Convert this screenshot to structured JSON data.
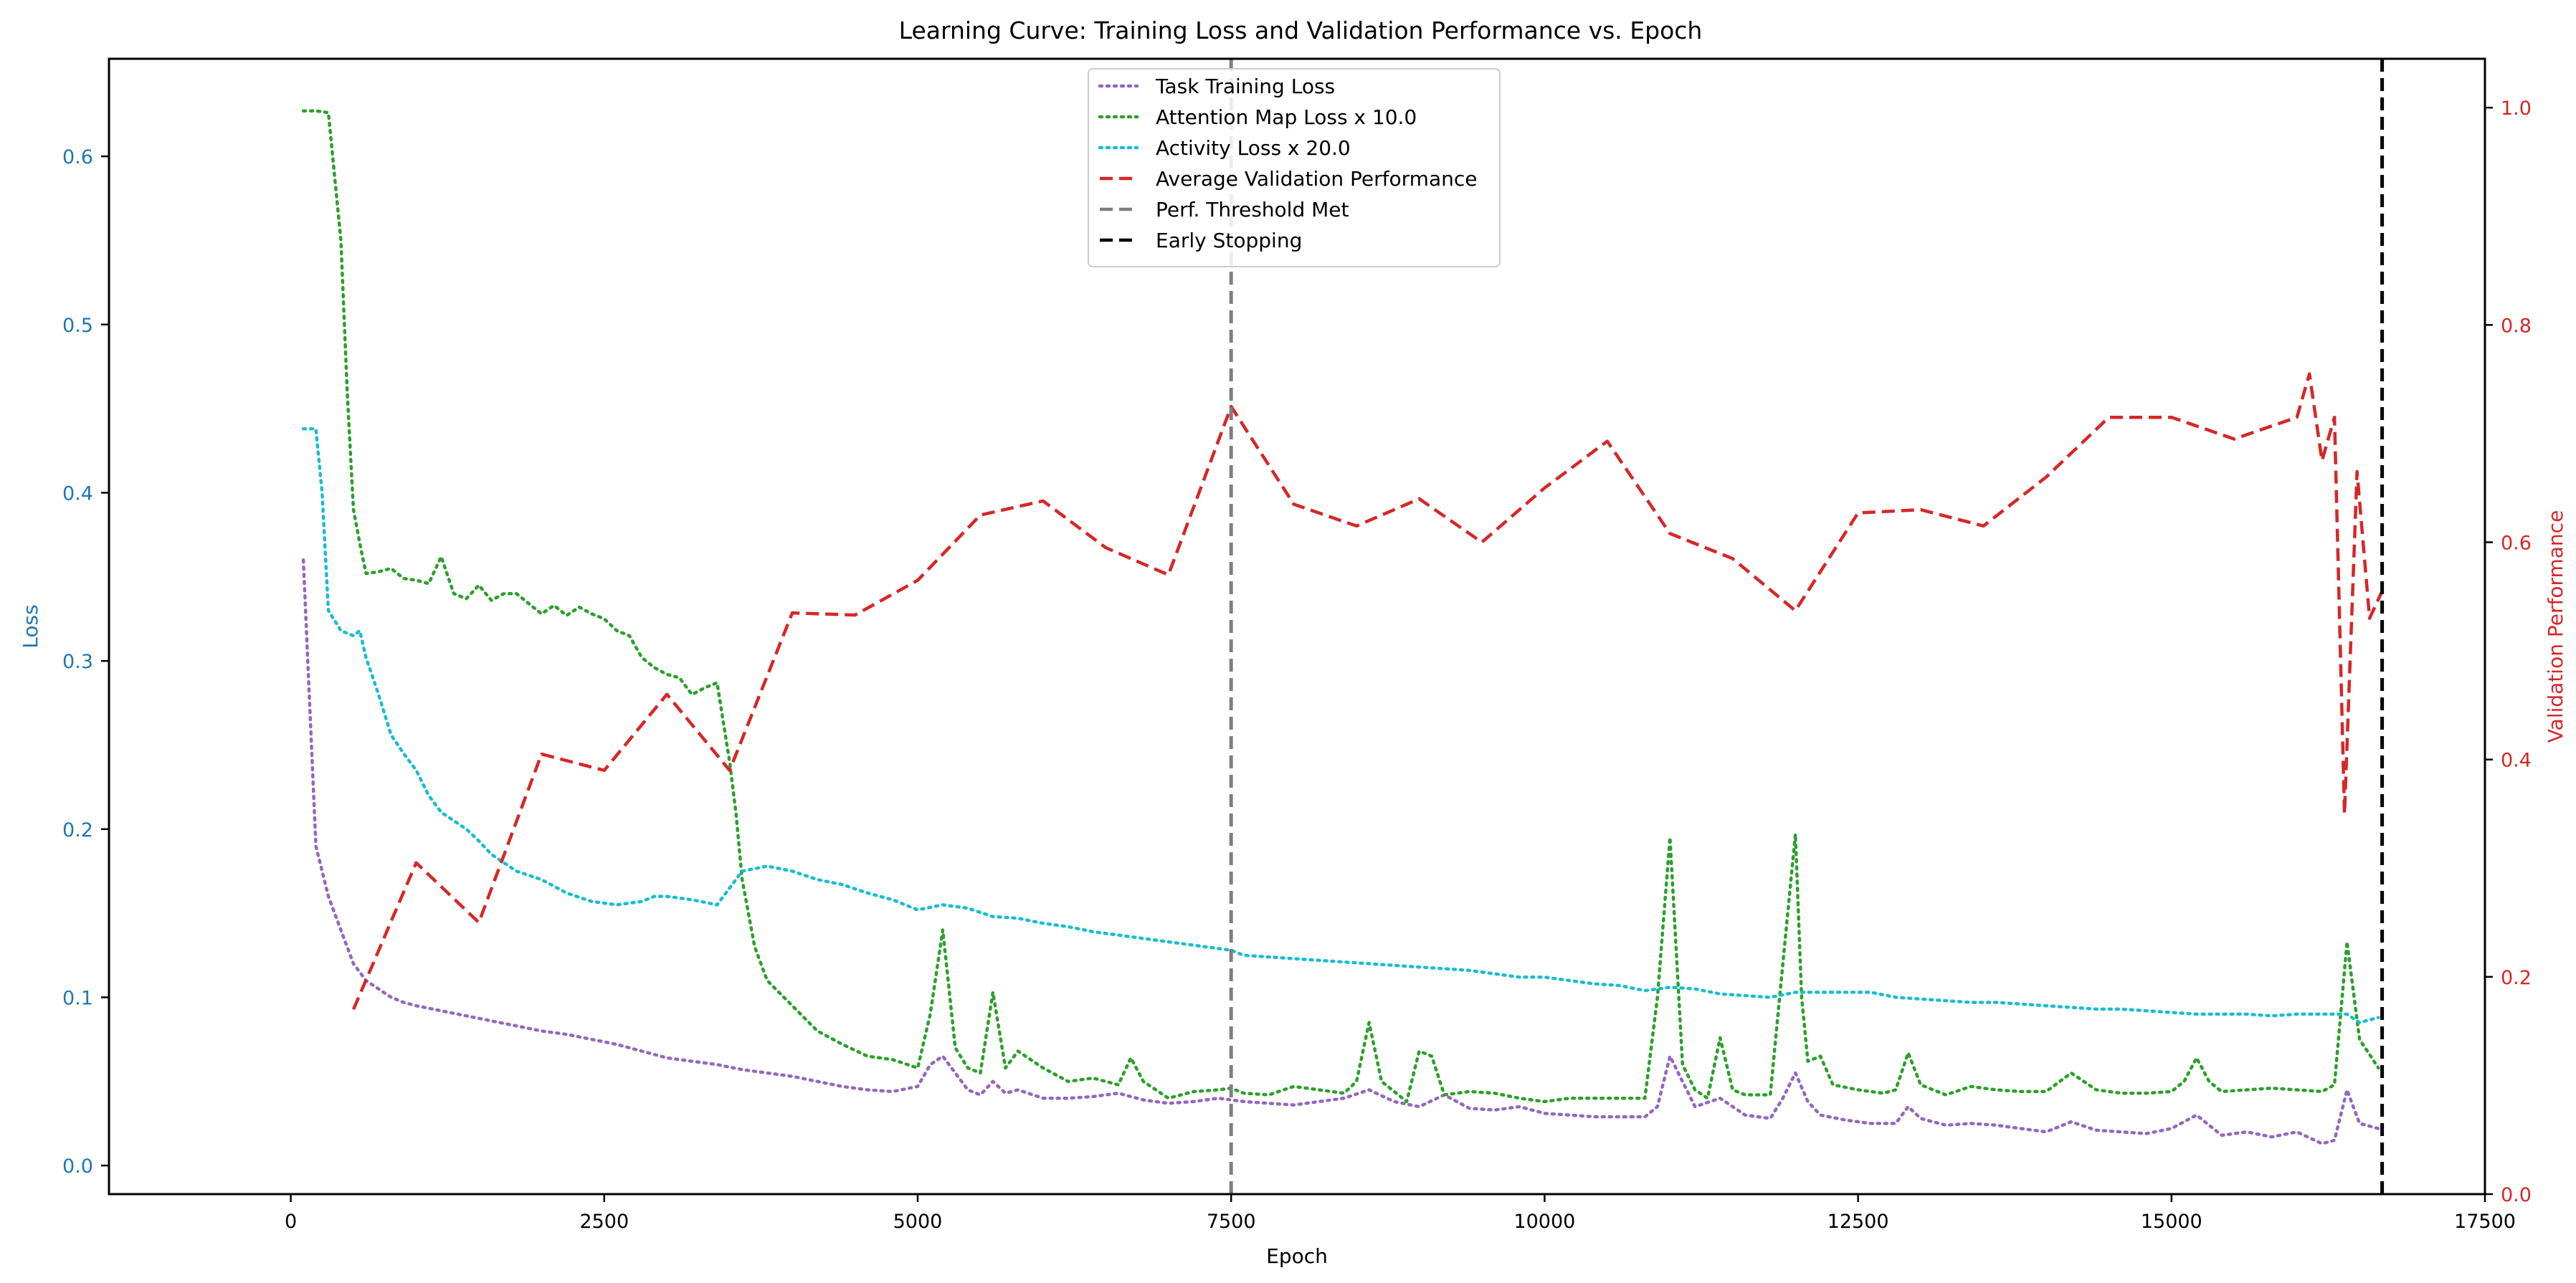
{
  "chart_data": {
    "type": "line",
    "title": "Learning Curve: Training Loss and Validation Performance vs. Epoch",
    "xlabel": "Epoch",
    "ylabel_left": "Loss",
    "ylabel_right": "Validation Performance",
    "xlim": [
      -1450,
      17500
    ],
    "ylim_left": [
      -0.017,
      0.658
    ],
    "ylim_right": [
      0.0,
      1.045
    ],
    "x_ticks": [
      0,
      2500,
      5000,
      7500,
      10000,
      12500,
      15000,
      17500
    ],
    "y_left_ticks": [
      0.0,
      0.1,
      0.2,
      0.3,
      0.4,
      0.5,
      0.6
    ],
    "y_right_ticks": [
      0.0,
      0.2,
      0.4,
      0.6,
      0.8,
      1.0
    ],
    "grid": false,
    "legend_position": "top-center",
    "colors": {
      "task": "#9467bd",
      "attention": "#2ca02c",
      "activity": "#17becf",
      "validation": "#d62728",
      "threshold": "#7f7f7f",
      "early_stop": "#000000",
      "left_axis": "#1f77b4",
      "right_axis": "#d62728"
    },
    "series": [
      {
        "name": "Task Training Loss",
        "axis": "left",
        "style": "dotted",
        "x": [
          100,
          200,
          300,
          400,
          500,
          600,
          700,
          800,
          900,
          1000,
          1200,
          1400,
          1600,
          1800,
          2000,
          2200,
          2400,
          2600,
          2800,
          3000,
          3200,
          3400,
          3600,
          3800,
          4000,
          4200,
          4400,
          4600,
          4800,
          5000,
          5100,
          5200,
          5300,
          5400,
          5500,
          5600,
          5700,
          5800,
          6000,
          6200,
          6400,
          6600,
          6800,
          7000,
          7200,
          7400,
          7600,
          7800,
          8000,
          8200,
          8400,
          8600,
          8800,
          9000,
          9200,
          9400,
          9600,
          9800,
          10000,
          10200,
          10400,
          10600,
          10800,
          10900,
          11000,
          11200,
          11400,
          11600,
          11800,
          11900,
          12000,
          12100,
          12200,
          12400,
          12600,
          12800,
          12900,
          13000,
          13200,
          13400,
          13600,
          13800,
          14000,
          14200,
          14400,
          14600,
          14800,
          15000,
          15200,
          15400,
          15600,
          15800,
          16000,
          16200,
          16300,
          16400,
          16500,
          16650
        ],
        "values": [
          0.36,
          0.19,
          0.16,
          0.14,
          0.12,
          0.11,
          0.105,
          0.1,
          0.097,
          0.095,
          0.092,
          0.089,
          0.086,
          0.083,
          0.08,
          0.078,
          0.075,
          0.072,
          0.068,
          0.064,
          0.062,
          0.06,
          0.057,
          0.055,
          0.053,
          0.05,
          0.047,
          0.045,
          0.044,
          0.047,
          0.06,
          0.065,
          0.055,
          0.045,
          0.042,
          0.05,
          0.043,
          0.045,
          0.04,
          0.04,
          0.041,
          0.043,
          0.039,
          0.037,
          0.038,
          0.04,
          0.038,
          0.037,
          0.036,
          0.038,
          0.04,
          0.045,
          0.038,
          0.035,
          0.042,
          0.034,
          0.033,
          0.035,
          0.031,
          0.03,
          0.029,
          0.029,
          0.029,
          0.035,
          0.065,
          0.035,
          0.04,
          0.03,
          0.028,
          0.04,
          0.055,
          0.038,
          0.03,
          0.027,
          0.025,
          0.025,
          0.035,
          0.028,
          0.024,
          0.025,
          0.024,
          0.022,
          0.02,
          0.026,
          0.021,
          0.02,
          0.019,
          0.022,
          0.03,
          0.018,
          0.02,
          0.017,
          0.02,
          0.013,
          0.015,
          0.045,
          0.025,
          0.022
        ]
      },
      {
        "name": "Attention Map Loss x 10.0",
        "axis": "left",
        "style": "dotted",
        "x": [
          100,
          200,
          300,
          400,
          450,
          500,
          550,
          600,
          700,
          800,
          900,
          1000,
          1100,
          1200,
          1300,
          1400,
          1500,
          1600,
          1700,
          1800,
          2000,
          2100,
          2200,
          2300,
          2400,
          2500,
          2600,
          2700,
          2800,
          2900,
          3000,
          3100,
          3200,
          3300,
          3400,
          3500,
          3550,
          3600,
          3700,
          3800,
          4000,
          4200,
          4400,
          4600,
          4800,
          5000,
          5100,
          5200,
          5300,
          5400,
          5500,
          5600,
          5700,
          5800,
          6000,
          6200,
          6400,
          6600,
          6700,
          6800,
          7000,
          7200,
          7400,
          7500,
          7600,
          7800,
          8000,
          8200,
          8400,
          8500,
          8600,
          8700,
          8900,
          9000,
          9100,
          9200,
          9400,
          9600,
          9800,
          10000,
          10200,
          10400,
          10600,
          10800,
          10900,
          11000,
          11100,
          11200,
          11300,
          11400,
          11500,
          11600,
          11800,
          11900,
          12000,
          12050,
          12100,
          12200,
          12300,
          12500,
          12700,
          12800,
          12900,
          13000,
          13200,
          13400,
          13600,
          13800,
          14000,
          14200,
          14400,
          14600,
          14800,
          15000,
          15100,
          15200,
          15300,
          15400,
          15600,
          15800,
          16000,
          16200,
          16300,
          16400,
          16500,
          16650
        ],
        "values": [
          0.627,
          0.627,
          0.626,
          0.55,
          0.46,
          0.39,
          0.37,
          0.352,
          0.353,
          0.355,
          0.349,
          0.348,
          0.346,
          0.362,
          0.34,
          0.337,
          0.345,
          0.336,
          0.34,
          0.34,
          0.328,
          0.333,
          0.327,
          0.332,
          0.328,
          0.325,
          0.318,
          0.315,
          0.302,
          0.296,
          0.292,
          0.29,
          0.28,
          0.284,
          0.287,
          0.24,
          0.21,
          0.17,
          0.13,
          0.11,
          0.095,
          0.08,
          0.072,
          0.065,
          0.063,
          0.058,
          0.09,
          0.14,
          0.07,
          0.058,
          0.055,
          0.103,
          0.058,
          0.068,
          0.058,
          0.05,
          0.052,
          0.048,
          0.064,
          0.05,
          0.04,
          0.044,
          0.045,
          0.046,
          0.043,
          0.042,
          0.047,
          0.045,
          0.043,
          0.05,
          0.085,
          0.05,
          0.038,
          0.068,
          0.065,
          0.042,
          0.044,
          0.043,
          0.04,
          0.038,
          0.04,
          0.04,
          0.04,
          0.04,
          0.1,
          0.195,
          0.06,
          0.045,
          0.04,
          0.076,
          0.045,
          0.042,
          0.042,
          0.12,
          0.197,
          0.1,
          0.062,
          0.065,
          0.048,
          0.045,
          0.043,
          0.045,
          0.067,
          0.048,
          0.042,
          0.047,
          0.045,
          0.044,
          0.044,
          0.055,
          0.045,
          0.043,
          0.043,
          0.044,
          0.05,
          0.064,
          0.05,
          0.044,
          0.045,
          0.046,
          0.045,
          0.044,
          0.048,
          0.133,
          0.075,
          0.058
        ]
      },
      {
        "name": "Activity Loss x 20.0",
        "axis": "left",
        "style": "dotted",
        "x": [
          100,
          200,
          250,
          300,
          400,
          500,
          550,
          600,
          700,
          800,
          900,
          1000,
          1100,
          1200,
          1300,
          1400,
          1500,
          1600,
          1800,
          2000,
          2200,
          2400,
          2600,
          2800,
          2900,
          3000,
          3200,
          3400,
          3600,
          3800,
          4000,
          4200,
          4400,
          4600,
          4800,
          5000,
          5200,
          5400,
          5600,
          5800,
          6000,
          6200,
          6400,
          6600,
          6800,
          7000,
          7200,
          7400,
          7500,
          7600,
          7800,
          8000,
          8200,
          8400,
          8600,
          8800,
          9000,
          9200,
          9400,
          9600,
          9800,
          10000,
          10200,
          10400,
          10600,
          10800,
          11000,
          11200,
          11400,
          11600,
          11800,
          12000,
          12200,
          12400,
          12600,
          12800,
          13000,
          13200,
          13400,
          13600,
          13800,
          14000,
          14200,
          14400,
          14600,
          14800,
          15000,
          15200,
          15400,
          15600,
          15800,
          16000,
          16200,
          16400,
          16500,
          16650
        ],
        "values": [
          0.438,
          0.438,
          0.4,
          0.33,
          0.318,
          0.315,
          0.318,
          0.302,
          0.28,
          0.256,
          0.245,
          0.235,
          0.22,
          0.21,
          0.205,
          0.2,
          0.193,
          0.185,
          0.175,
          0.17,
          0.162,
          0.157,
          0.155,
          0.157,
          0.16,
          0.16,
          0.158,
          0.155,
          0.175,
          0.178,
          0.175,
          0.17,
          0.167,
          0.162,
          0.158,
          0.152,
          0.155,
          0.153,
          0.148,
          0.147,
          0.144,
          0.142,
          0.139,
          0.137,
          0.135,
          0.133,
          0.131,
          0.129,
          0.128,
          0.125,
          0.124,
          0.123,
          0.122,
          0.121,
          0.12,
          0.119,
          0.118,
          0.117,
          0.116,
          0.114,
          0.112,
          0.112,
          0.11,
          0.108,
          0.107,
          0.104,
          0.106,
          0.105,
          0.102,
          0.101,
          0.1,
          0.103,
          0.103,
          0.103,
          0.103,
          0.1,
          0.099,
          0.098,
          0.097,
          0.097,
          0.096,
          0.095,
          0.094,
          0.093,
          0.093,
          0.092,
          0.091,
          0.09,
          0.09,
          0.09,
          0.089,
          0.09,
          0.09,
          0.09,
          0.085,
          0.088
        ]
      },
      {
        "name": "Average Validation Performance",
        "axis": "right",
        "style": "dashed",
        "x": [
          500,
          1000,
          1500,
          2000,
          2500,
          3000,
          3500,
          4000,
          4500,
          5000,
          5500,
          6000,
          6500,
          7000,
          7500,
          8000,
          8500,
          9000,
          9500,
          10000,
          10500,
          11000,
          11500,
          12000,
          12500,
          13000,
          13500,
          14000,
          14500,
          15000,
          15500,
          16000,
          16100,
          16200,
          16300,
          16380,
          16480,
          16580,
          16680
        ],
        "values": [
          0.17,
          0.305,
          0.25,
          0.405,
          0.39,
          0.46,
          0.39,
          0.535,
          0.533,
          0.565,
          0.625,
          0.638,
          0.595,
          0.57,
          0.725,
          0.635,
          0.615,
          0.64,
          0.6,
          0.65,
          0.693,
          0.608,
          0.585,
          0.537,
          0.627,
          0.63,
          0.615,
          0.66,
          0.715,
          0.715,
          0.695,
          0.715,
          0.755,
          0.675,
          0.715,
          0.35,
          0.665,
          0.53,
          0.555
        ]
      }
    ],
    "vlines": [
      {
        "name": "Perf. Threshold Met",
        "x": 7500,
        "style": "dashed"
      },
      {
        "name": "Early Stopping",
        "x": 16680,
        "style": "dashed"
      }
    ]
  }
}
